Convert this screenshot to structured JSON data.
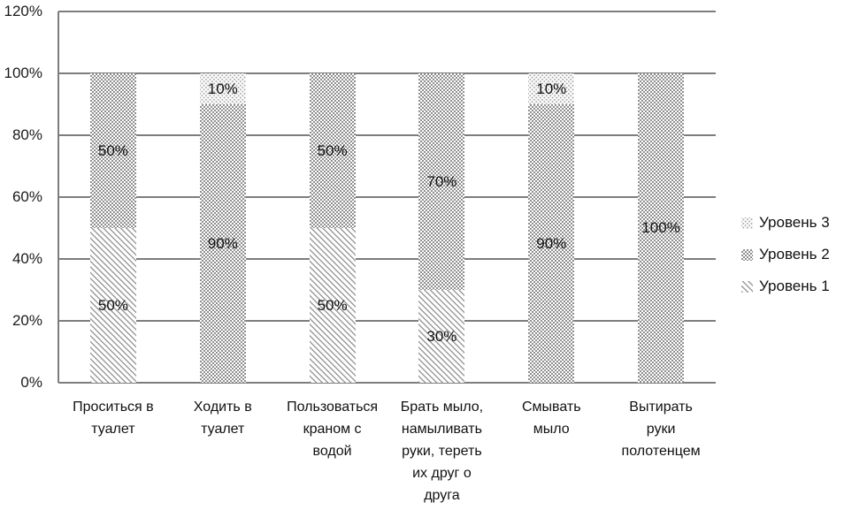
{
  "chart_data": {
    "type": "bar",
    "subtype": "stacked-100-percent",
    "orientation": "vertical",
    "title": "",
    "xlabel": "",
    "ylabel": "",
    "grid": true,
    "background": "#ffffff",
    "categories": [
      "Проситься в туалет",
      "Ходить в туалет",
      "Пользоваться краном с водой",
      "Брать мыло, намыливать руки, тереть их друг о друга",
      "Смывать мыло",
      "Вытирать руки полотенцем"
    ],
    "categories_wrapped": [
      [
        "Проситься в",
        "туалет"
      ],
      [
        "Ходить в",
        "туалет"
      ],
      [
        "Пользоваться",
        "краном с",
        "водой"
      ],
      [
        "Брать мыло,",
        "намыливать",
        "руки, тереть",
        "их друг о",
        "друга"
      ],
      [
        "Смывать",
        "мыло"
      ],
      [
        "Вытирать",
        "руки",
        "полотенцем"
      ]
    ],
    "series": [
      {
        "name": "Уровень 1",
        "pattern": "diagonal",
        "values": [
          50,
          0,
          50,
          30,
          0,
          0
        ]
      },
      {
        "name": "Уровень 2",
        "pattern": "checker",
        "values": [
          50,
          90,
          50,
          70,
          90,
          100
        ]
      },
      {
        "name": "Уровень 3",
        "pattern": "dots",
        "values": [
          0,
          10,
          0,
          0,
          10,
          0
        ]
      }
    ],
    "data_labels": {
      "visible": true,
      "format": "{value}%",
      "shown": [
        [
          "50%",
          "50%"
        ],
        [
          "90%",
          "10%"
        ],
        [
          "50%",
          "50%"
        ],
        [
          "30%",
          "70%"
        ],
        [
          "90%",
          "10%"
        ],
        [
          "100%"
        ]
      ]
    },
    "y_axis": {
      "min": 0,
      "max": 120,
      "step": 20,
      "tick_values": [
        0,
        20,
        40,
        60,
        80,
        100,
        120
      ],
      "tick_labels": [
        "0%",
        "20%",
        "40%",
        "60%",
        "80%",
        "100%",
        "120%"
      ]
    },
    "legend": {
      "position": "right",
      "entries": [
        {
          "label": "Уровень 3",
          "pattern": "dots"
        },
        {
          "label": "Уровень 2",
          "pattern": "checker"
        },
        {
          "label": "Уровень 1",
          "pattern": "diagonal"
        }
      ]
    },
    "colors": {
      "pattern_gray_level1": "#9b9b9b",
      "pattern_gray_level2": "#8f8f8f",
      "pattern_gray_level3": "#a9a9a9",
      "gridline": "#7d7d7d",
      "text": "#111111",
      "background": "#ffffff"
    }
  }
}
